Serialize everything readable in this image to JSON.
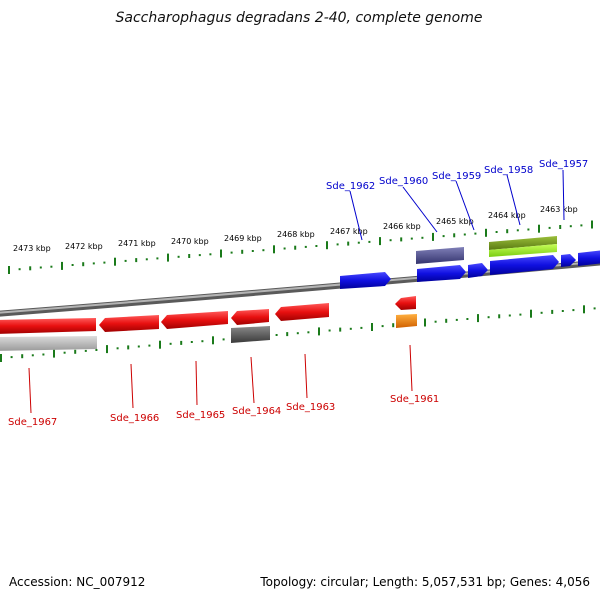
{
  "title": "Saccharophagus degradans 2-40, complete genome",
  "footer": {
    "accession": "Accession: NC_007912",
    "summary": "Topology: circular; Length: 5,057,531 bp; Genes: 4,056"
  },
  "scale": {
    "unit": "kbp",
    "tick_labels": [
      "2473 kbp",
      "2472 kbp",
      "2471 kbp",
      "2470 kbp",
      "2469 kbp",
      "2468 kbp",
      "2467 kbp",
      "2466 kbp",
      "2465 kbp",
      "2464 kbp",
      "2463 kbp"
    ]
  },
  "colors": {
    "forward_gene": "#1010e0",
    "reverse_gene": "#e01010",
    "forward_label": "#0000cc",
    "reverse_label": "#cc0000",
    "tick": "#1a7a1a",
    "backbone": "#8a8a8a"
  },
  "genes": {
    "forward_labels": [
      "Sde_1962",
      "Sde_1960",
      "Sde_1959",
      "Sde_1958",
      "Sde_1957"
    ],
    "reverse_labels": [
      "Sde_1967",
      "Sde_1966",
      "Sde_1965",
      "Sde_1964",
      "Sde_1963",
      "Sde_1961"
    ]
  }
}
